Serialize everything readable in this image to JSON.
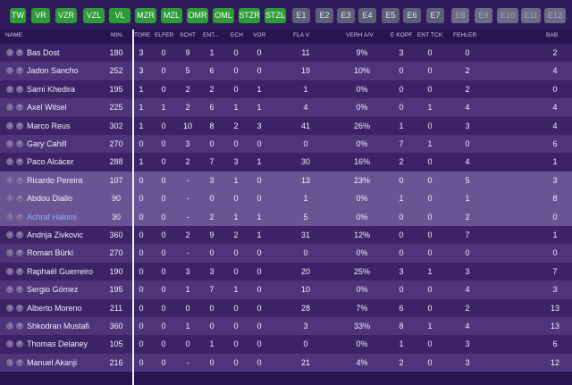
{
  "filters": [
    {
      "label": "TW",
      "style": "green"
    },
    {
      "label": "VR",
      "style": "green"
    },
    {
      "label": "VZR",
      "style": "green"
    },
    {
      "label": "VZL",
      "style": "green"
    },
    {
      "label": "VL",
      "style": "green"
    },
    {
      "label": "MZR",
      "style": "green"
    },
    {
      "label": "MZL",
      "style": "green"
    },
    {
      "label": "OMR",
      "style": "green"
    },
    {
      "label": "OML",
      "style": "green"
    },
    {
      "label": "STZR",
      "style": "green"
    },
    {
      "label": "STZL",
      "style": "green"
    },
    {
      "label": "E1",
      "style": "grey"
    },
    {
      "label": "E2",
      "style": "grey"
    },
    {
      "label": "E3",
      "style": "grey"
    },
    {
      "label": "E4",
      "style": "grey"
    },
    {
      "label": "E5",
      "style": "grey"
    },
    {
      "label": "E6",
      "style": "grey"
    },
    {
      "label": "E7",
      "style": "grey"
    },
    {
      "label": "E8",
      "style": "dim"
    },
    {
      "label": "E9",
      "style": "dim"
    },
    {
      "label": "E10",
      "style": "dim"
    },
    {
      "label": "E11",
      "style": "dim"
    },
    {
      "label": "E12",
      "style": "dim"
    }
  ],
  "columns": {
    "name": "NAME",
    "min": "MIN.",
    "tore": "TORE",
    "elfer": "ELFER",
    "scht": "SCHT",
    "ent": "ENT...",
    "ech": "ECH",
    "vor": "VOR",
    "flav": "FLA V",
    "verh": "VERH A/V",
    "ekopf": "E KOPF",
    "enttck": "ENT TCK",
    "fehler": "FEHLER",
    "bab": "BAB"
  },
  "players": [
    {
      "name": "Bas Dost",
      "min": "180",
      "tore": "3",
      "elfer": "0",
      "scht": "9",
      "ent": "1",
      "ech": "0",
      "vor": "0",
      "flav": "11",
      "verh": "9%",
      "ekopf": "3",
      "enttck": "0",
      "fehler": "0",
      "bab": "2"
    },
    {
      "name": "Jadon Sancho",
      "min": "252",
      "tore": "3",
      "elfer": "0",
      "scht": "5",
      "ent": "6",
      "ech": "0",
      "vor": "0",
      "flav": "19",
      "verh": "10%",
      "ekopf": "0",
      "enttck": "0",
      "fehler": "2",
      "bab": "4"
    },
    {
      "name": "Sami Khedira",
      "min": "195",
      "tore": "1",
      "elfer": "0",
      "scht": "2",
      "ent": "2",
      "ech": "0",
      "vor": "1",
      "flav": "1",
      "verh": "0%",
      "ekopf": "0",
      "enttck": "0",
      "fehler": "2",
      "bab": "0"
    },
    {
      "name": "Axel Witsel",
      "min": "225",
      "tore": "1",
      "elfer": "1",
      "scht": "2",
      "ent": "6",
      "ech": "1",
      "vor": "1",
      "flav": "4",
      "verh": "0%",
      "ekopf": "0",
      "enttck": "1",
      "fehler": "4",
      "bab": "4"
    },
    {
      "name": "Marco Reus",
      "min": "302",
      "tore": "1",
      "elfer": "0",
      "scht": "10",
      "ent": "8",
      "ech": "2",
      "vor": "3",
      "flav": "41",
      "verh": "26%",
      "ekopf": "1",
      "enttck": "0",
      "fehler": "3",
      "bab": "4"
    },
    {
      "name": "Gary Cahill",
      "min": "270",
      "tore": "0",
      "elfer": "0",
      "scht": "3",
      "ent": "0",
      "ech": "0",
      "vor": "0",
      "flav": "0",
      "verh": "0%",
      "ekopf": "7",
      "enttck": "1",
      "fehler": "0",
      "bab": "6"
    },
    {
      "name": "Paco Alcácer",
      "min": "288",
      "tore": "1",
      "elfer": "0",
      "scht": "2",
      "ent": "7",
      "ech": "3",
      "vor": "1",
      "flav": "30",
      "verh": "16%",
      "ekopf": "2",
      "enttck": "0",
      "fehler": "4",
      "bab": "1"
    },
    {
      "name": "Ricardo Pereira",
      "min": "107",
      "tore": "0",
      "elfer": "0",
      "scht": "-",
      "ent": "3",
      "ech": "1",
      "vor": "0",
      "flav": "13",
      "verh": "23%",
      "ekopf": "0",
      "enttck": "0",
      "fehler": "5",
      "bab": "3"
    },
    {
      "name": "Abdou Diallo",
      "min": "90",
      "tore": "0",
      "elfer": "0",
      "scht": "-",
      "ent": "0",
      "ech": "0",
      "vor": "0",
      "flav": "1",
      "verh": "0%",
      "ekopf": "1",
      "enttck": "0",
      "fehler": "1",
      "bab": "8"
    },
    {
      "name": "Achraf Hakimi",
      "min": "30",
      "tore": "0",
      "elfer": "0",
      "scht": "-",
      "ent": "2",
      "ech": "1",
      "vor": "1",
      "flav": "5",
      "verh": "0%",
      "ekopf": "0",
      "enttck": "0",
      "fehler": "2",
      "bab": "0"
    },
    {
      "name": "Andrija Zivkovic",
      "min": "360",
      "tore": "0",
      "elfer": "0",
      "scht": "2",
      "ent": "9",
      "ech": "2",
      "vor": "1",
      "flav": "31",
      "verh": "12%",
      "ekopf": "0",
      "enttck": "0",
      "fehler": "7",
      "bab": "1"
    },
    {
      "name": "Roman Bürki",
      "min": "270",
      "tore": "0",
      "elfer": "0",
      "scht": "-",
      "ent": "0",
      "ech": "0",
      "vor": "0",
      "flav": "0",
      "verh": "0%",
      "ekopf": "0",
      "enttck": "0",
      "fehler": "0",
      "bab": "0"
    },
    {
      "name": "Raphaël Guerreiro",
      "min": "190",
      "tore": "0",
      "elfer": "0",
      "scht": "3",
      "ent": "3",
      "ech": "0",
      "vor": "0",
      "flav": "20",
      "verh": "25%",
      "ekopf": "3",
      "enttck": "1",
      "fehler": "3",
      "bab": "7"
    },
    {
      "name": "Sergio Gómez",
      "min": "195",
      "tore": "0",
      "elfer": "0",
      "scht": "1",
      "ent": "7",
      "ech": "1",
      "vor": "0",
      "flav": "10",
      "verh": "0%",
      "ekopf": "0",
      "enttck": "0",
      "fehler": "4",
      "bab": "3"
    },
    {
      "name": "Alberto Moreno",
      "min": "211",
      "tore": "0",
      "elfer": "0",
      "scht": "0",
      "ent": "0",
      "ech": "0",
      "vor": "0",
      "flav": "28",
      "verh": "7%",
      "ekopf": "6",
      "enttck": "0",
      "fehler": "2",
      "bab": "13"
    },
    {
      "name": "Shkodran Mustafi",
      "min": "360",
      "tore": "0",
      "elfer": "0",
      "scht": "1",
      "ent": "0",
      "ech": "0",
      "vor": "0",
      "flav": "3",
      "verh": "33%",
      "ekopf": "8",
      "enttck": "1",
      "fehler": "4",
      "bab": "13"
    },
    {
      "name": "Thomas Delaney",
      "min": "105",
      "tore": "0",
      "elfer": "0",
      "scht": "0",
      "ent": "1",
      "ech": "0",
      "vor": "0",
      "flav": "0",
      "verh": "0%",
      "ekopf": "1",
      "enttck": "0",
      "fehler": "3",
      "bab": "6"
    },
    {
      "name": "Manuel Akanji",
      "min": "216",
      "tore": "0",
      "elfer": "0",
      "scht": "-",
      "ent": "0",
      "ech": "0",
      "vor": "0",
      "flav": "21",
      "verh": "4%",
      "ekopf": "2",
      "enttck": "0",
      "fehler": "3",
      "bab": "12"
    }
  ],
  "icons": {
    "info": "info-icon",
    "status": "status-icon"
  },
  "colors": {
    "filter_active": "#2f9a3a",
    "filter_inactive": "#5c5f78",
    "row_highlight": "#6b5494",
    "link_name": "#8fb0ff"
  }
}
